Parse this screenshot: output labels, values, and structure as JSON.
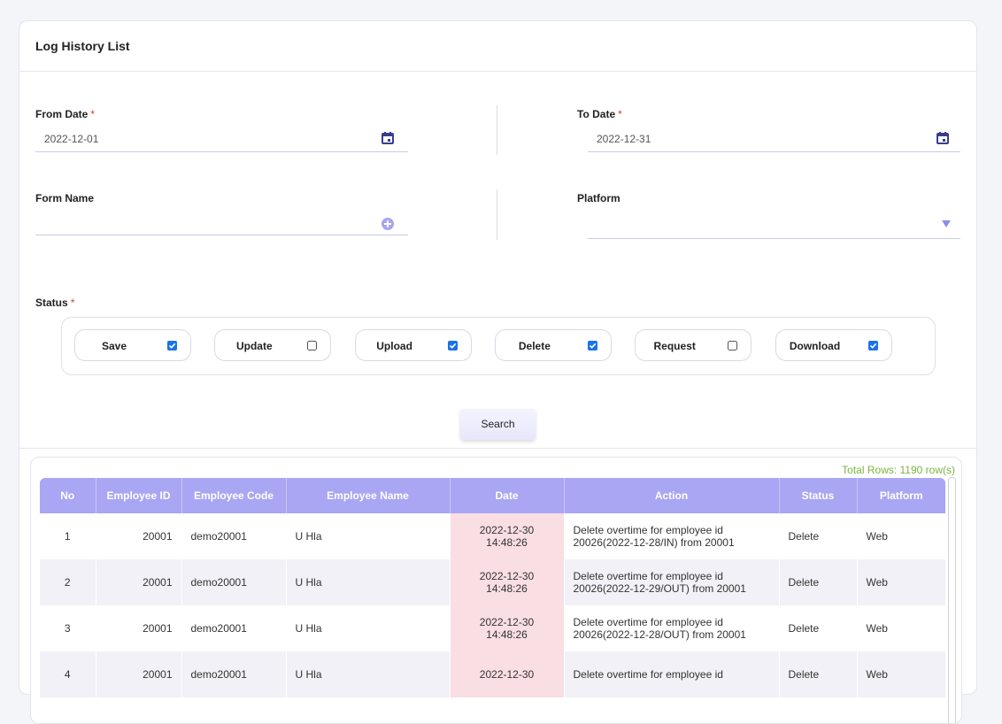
{
  "header": {
    "title": "Log History List"
  },
  "required_mark": "*",
  "form": {
    "from_date": {
      "label": "From Date",
      "required": true,
      "value": "2022-12-01"
    },
    "to_date": {
      "label": "To Date",
      "required": true,
      "value": "2022-12-31"
    },
    "form_name": {
      "label": "Form Name"
    },
    "platform": {
      "label": "Platform"
    },
    "status": {
      "label": "Status",
      "required": true,
      "options": [
        {
          "label": "Save",
          "checked": true
        },
        {
          "label": "Update",
          "checked": false
        },
        {
          "label": "Upload",
          "checked": true
        },
        {
          "label": "Delete",
          "checked": true
        },
        {
          "label": "Request",
          "checked": false
        },
        {
          "label": "Download",
          "checked": true
        }
      ]
    },
    "search_button": "Search"
  },
  "table": {
    "total_rows": "Total Rows: 1190 row(s)",
    "columns": [
      "No",
      "Employee ID",
      "Employee Code",
      "Employee Name",
      "Date",
      "Action",
      "Status",
      "Platform"
    ],
    "rows": [
      [
        1,
        20001,
        "demo20001",
        "U Hla",
        "2022-12-30 14:48:26",
        "Delete overtime for employee id 20026(2022-12-28/IN) from 20001",
        "Delete",
        "Web"
      ],
      [
        2,
        20001,
        "demo20001",
        "U Hla",
        "2022-12-30 14:48:26",
        "Delete overtime for employee id 20026(2022-12-29/OUT) from 20001",
        "Delete",
        "Web"
      ],
      [
        3,
        20001,
        "demo20001",
        "U Hla",
        "2022-12-30 14:48:26",
        "Delete overtime for employee id 20026(2022-12-28/OUT) from 20001",
        "Delete",
        "Web"
      ],
      [
        4,
        20001,
        "demo20001",
        "U Hla",
        "2022-12-30",
        "Delete overtime for employee id",
        "Delete",
        "Web"
      ]
    ]
  }
}
